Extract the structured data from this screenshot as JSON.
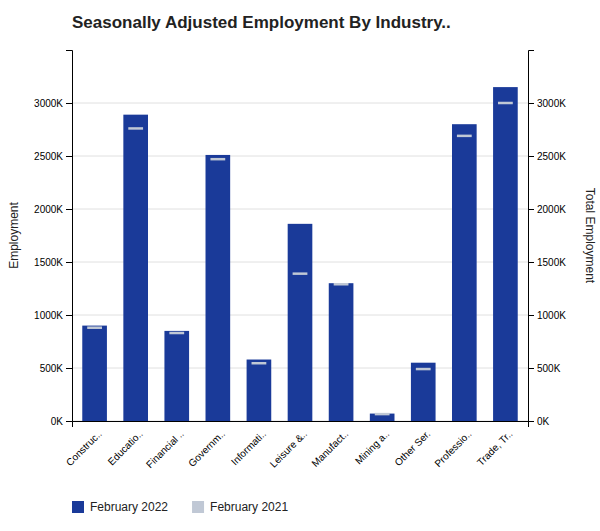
{
  "chart_data": {
    "type": "bar",
    "title": "Seasonally Adjusted Employment By Industry..",
    "categories": [
      "Construc..",
      "Educatio..",
      "Financial ..",
      "Governm..",
      "Informati..",
      "Leisure &..",
      "Manufact..",
      "Mining a..",
      "Other Ser.",
      "Professio..",
      "Trade, Tr.."
    ],
    "series": [
      {
        "name": "February 2022",
        "type": "bar",
        "color": "#1a3a99",
        "values": [
          900000,
          2890000,
          850000,
          2510000,
          580000,
          1860000,
          1300000,
          70000,
          550000,
          2800000,
          3150000
        ]
      },
      {
        "name": "February 2021",
        "type": "marker",
        "marker": "hline",
        "color": "#c0c8d5",
        "values": [
          880000,
          2760000,
          830000,
          2470000,
          545000,
          1390000,
          1290000,
          65000,
          490000,
          2690000,
          3000000
        ]
      }
    ],
    "y_label": "Employment",
    "y2_label": "Total Employment",
    "ylim": [
      0,
      3500000
    ],
    "yticks": [
      {
        "value": 0,
        "label": "0K"
      },
      {
        "value": 500000,
        "label": "500K"
      },
      {
        "value": 1000000,
        "label": "1000K"
      },
      {
        "value": 1500000,
        "label": "1500K"
      },
      {
        "value": 2000000,
        "label": "2000K"
      },
      {
        "value": 2500000,
        "label": "2500K"
      },
      {
        "value": 3000000,
        "label": "3000K"
      }
    ],
    "y2lim": [
      0,
      3500000
    ],
    "y2ticks": [
      {
        "value": 0,
        "label": "0K"
      },
      {
        "value": 500000,
        "label": "500K"
      },
      {
        "value": 1000000,
        "label": "1000K"
      },
      {
        "value": 1500000,
        "label": "1500K"
      },
      {
        "value": 2000000,
        "label": "2000K"
      },
      {
        "value": 2500000,
        "label": "2500K"
      },
      {
        "value": 3000000,
        "label": "3000K"
      }
    ],
    "grid": true,
    "legend": "bottom"
  }
}
